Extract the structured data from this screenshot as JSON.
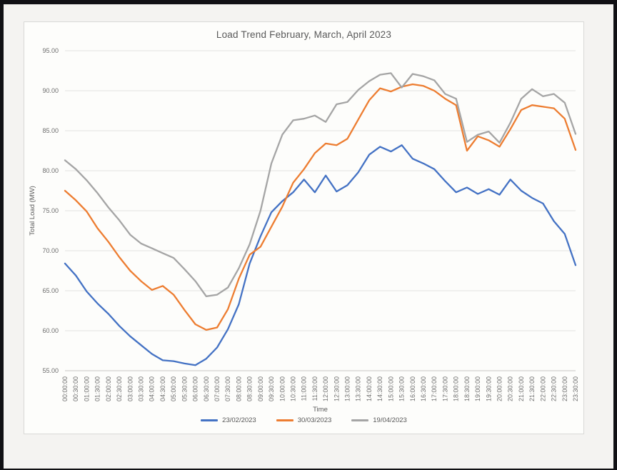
{
  "page": {
    "background": "#f4f3f1",
    "frame_color": "#101014",
    "chart_border_color": "#d9d9d7"
  },
  "chart_data": {
    "type": "line",
    "title": "Load Trend February, March, April 2023",
    "xlabel": "Time",
    "ylabel": "Total Load (MW)",
    "ylim": [
      55,
      95
    ],
    "ytick_step": 5,
    "yticks": [
      "55.00",
      "60.00",
      "65.00",
      "70.00",
      "75.00",
      "80.00",
      "85.00",
      "90.00",
      "95.00"
    ],
    "grid": true,
    "grid_color": "#e4e3e1",
    "axis_line_color": "#c6c5c3",
    "tick_text_color": "#6e6e6e",
    "legend_position": "bottom",
    "x": [
      "00:00:00",
      "00:30:00",
      "01:00:00",
      "01:30:00",
      "02:00:00",
      "02:30:00",
      "03:00:00",
      "03:30:00",
      "04:00:00",
      "04:30:00",
      "05:00:00",
      "05:30:00",
      "06:00:00",
      "06:30:00",
      "07:00:00",
      "07:30:00",
      "08:00:00",
      "08:30:00",
      "09:00:00",
      "09:30:00",
      "10:00:00",
      "10:30:00",
      "11:00:00",
      "11:30:00",
      "12:00:00",
      "12:30:00",
      "13:00:00",
      "13:30:00",
      "14:00:00",
      "14:30:00",
      "15:00:00",
      "15:30:00",
      "16:00:00",
      "16:30:00",
      "17:00:00",
      "17:30:00",
      "18:00:00",
      "18:30:00",
      "19:00:00",
      "19:30:00",
      "20:00:00",
      "20:30:00",
      "21:00:00",
      "21:30:00",
      "22:00:00",
      "22:30:00",
      "23:00:00",
      "23:30:00"
    ],
    "series": [
      {
        "name": "23/02/2023",
        "color": "#4472C4",
        "values": [
          68.4,
          66.9,
          64.9,
          63.4,
          62.1,
          60.6,
          59.3,
          58.2,
          57.1,
          56.3,
          56.2,
          55.9,
          55.7,
          56.5,
          57.9,
          60.2,
          63.3,
          68.4,
          71.8,
          74.8,
          76.2,
          77.3,
          78.9,
          77.3,
          79.4,
          77.4,
          78.2,
          79.8,
          82.0,
          83.0,
          82.4,
          83.2,
          81.5,
          80.9,
          80.2,
          78.7,
          77.3,
          77.9,
          77.1,
          77.7,
          77.0,
          78.9,
          77.5,
          76.6,
          75.9,
          73.7,
          72.1,
          68.2
        ]
      },
      {
        "name": "30/03/2023",
        "color": "#ED7D31",
        "values": [
          77.5,
          76.3,
          74.9,
          72.8,
          71.1,
          69.2,
          67.5,
          66.2,
          65.1,
          65.6,
          64.5,
          62.6,
          60.8,
          60.1,
          60.4,
          62.7,
          66.5,
          69.5,
          70.5,
          73.0,
          75.5,
          78.5,
          80.2,
          82.2,
          83.4,
          83.2,
          84.0,
          86.4,
          88.8,
          90.3,
          89.9,
          90.5,
          90.8,
          90.6,
          90.0,
          89.0,
          88.2,
          82.5,
          84.3,
          83.8,
          83.0,
          85.2,
          87.6,
          88.2,
          88.0,
          87.8,
          86.5,
          82.6
        ]
      },
      {
        "name": "19/04/2023",
        "color": "#A5A5A5",
        "values": [
          81.3,
          80.2,
          78.8,
          77.2,
          75.4,
          73.8,
          72.0,
          70.9,
          70.3,
          69.7,
          69.1,
          67.7,
          66.2,
          64.3,
          64.5,
          65.4,
          67.8,
          70.8,
          75.0,
          80.9,
          84.5,
          86.3,
          86.5,
          86.9,
          86.1,
          88.3,
          88.6,
          90.1,
          91.2,
          92.0,
          92.2,
          90.4,
          92.1,
          91.8,
          91.3,
          89.6,
          89.0,
          83.6,
          84.5,
          84.9,
          83.5,
          86.0,
          89.0,
          90.2,
          89.3,
          89.6,
          88.5,
          84.6
        ]
      }
    ]
  }
}
